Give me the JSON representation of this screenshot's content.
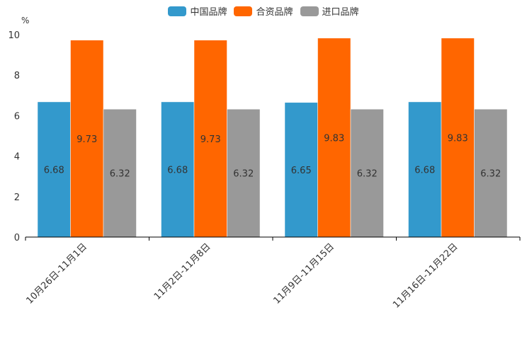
{
  "chart_data": {
    "type": "bar",
    "title": "",
    "ylabel": "%",
    "ylim": [
      0,
      10
    ],
    "yticks": [
      "0",
      "2",
      "4",
      "6",
      "8",
      "10"
    ],
    "categories": [
      "10月26日-11月1日",
      "11月2日-11月8日",
      "11月9日-11月15日",
      "11月16日-11月22日"
    ],
    "series": [
      {
        "name": "中国品牌",
        "color": "#3399cc",
        "values": [
          6.68,
          6.68,
          6.65,
          6.68
        ],
        "labels": [
          "6.68",
          "6.68",
          "6.65",
          "6.68"
        ]
      },
      {
        "name": "合资品牌",
        "color": "#ff6600",
        "values": [
          9.73,
          9.73,
          9.83,
          9.83
        ],
        "labels": [
          "9.73",
          "9.73",
          "9.83",
          "9.83"
        ]
      },
      {
        "name": "进口品牌",
        "color": "#999999",
        "values": [
          6.32,
          6.32,
          6.32,
          6.32
        ],
        "labels": [
          "6.32",
          "6.32",
          "6.32",
          "6.32"
        ]
      }
    ],
    "legend_position": "top-center"
  }
}
